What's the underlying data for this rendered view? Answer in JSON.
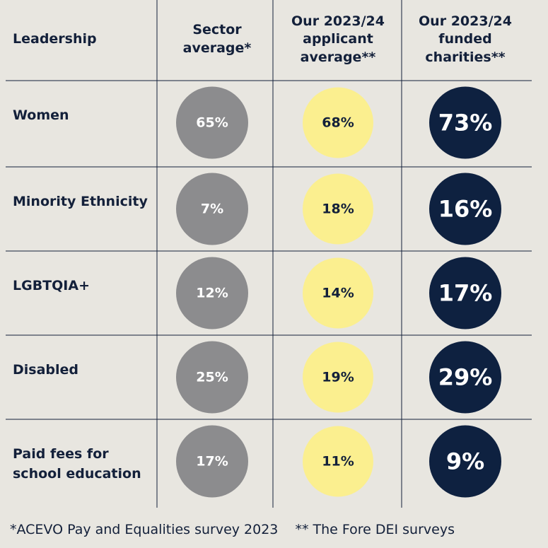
{
  "header": {
    "leadership": "Leadership",
    "sector": "Sector average*",
    "applicant": "Our 2023/24 applicant average**",
    "funded": "Our 2023/24 funded charities**"
  },
  "chart_data": {
    "type": "table",
    "columns": [
      "Sector average*",
      "Our 2023/24 applicant average**",
      "Our 2023/24 funded charities**"
    ],
    "rows": [
      {
        "label": "Women",
        "values": [
          65,
          68,
          73
        ]
      },
      {
        "label": "Minority Ethnicity",
        "values": [
          7,
          18,
          16
        ]
      },
      {
        "label": "LGBTQIA+",
        "values": [
          12,
          14,
          17
        ]
      },
      {
        "label": "Disabled",
        "values": [
          25,
          19,
          29
        ]
      },
      {
        "label": "Paid fees for school education",
        "values": [
          17,
          11,
          9
        ]
      }
    ],
    "unit": "%",
    "colors": {
      "sector": "#8c8c8e",
      "applicant": "#fbef8f",
      "funded": "#0e2140",
      "background": "#e8e6e0",
      "lines": "#13203a"
    }
  },
  "footnote": {
    "a": "*ACEVO Pay and Equalities survey 2023",
    "b": "** The Fore DEI surveys"
  }
}
